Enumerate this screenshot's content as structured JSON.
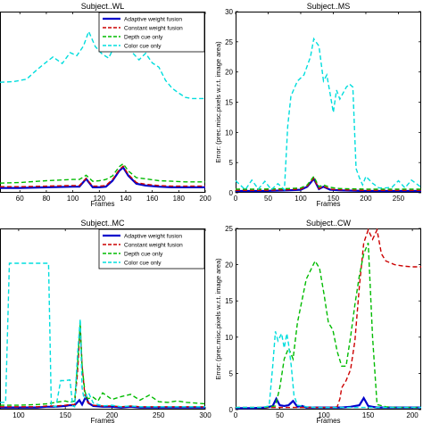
{
  "chart_data": [
    {
      "type": "line",
      "title": "Subject..WL",
      "xlabel": "Frames",
      "ylabel": "",
      "xlim": [
        45,
        200
      ],
      "ylim": [
        0,
        30
      ],
      "xticks": [
        60,
        80,
        100,
        120,
        140,
        160,
        180,
        200
      ],
      "yticks": [],
      "legend": "top-right",
      "series": [
        {
          "name": "Adaptive weight fusion",
          "color": "#0000cc",
          "dash": "solid",
          "x": [
            45,
            60,
            80,
            100,
            105,
            110,
            115,
            120,
            125,
            130,
            135,
            138,
            142,
            148,
            155,
            165,
            175,
            185,
            200
          ],
          "y": [
            0.8,
            0.8,
            0.9,
            1.0,
            1.0,
            2.3,
            0.9,
            0.9,
            1.0,
            2.0,
            3.6,
            4.2,
            2.8,
            1.5,
            1.2,
            1.0,
            0.9,
            0.9,
            0.9
          ]
        },
        {
          "name": "Constant weight fusion",
          "color": "#cc0000",
          "dash": "dash",
          "x": [
            45,
            60,
            80,
            100,
            105,
            110,
            115,
            120,
            125,
            130,
            135,
            138,
            142,
            148,
            155,
            165,
            175,
            185,
            200
          ],
          "y": [
            1.0,
            1.0,
            1.1,
            1.2,
            1.2,
            2.4,
            1.1,
            1.1,
            1.2,
            2.2,
            3.8,
            4.4,
            3.0,
            1.7,
            1.4,
            1.2,
            1.1,
            1.1,
            1.1
          ]
        },
        {
          "name": "Depth cue only",
          "color": "#00bb00",
          "dash": "dash",
          "x": [
            45,
            60,
            80,
            100,
            105,
            110,
            115,
            120,
            125,
            130,
            135,
            138,
            142,
            148,
            155,
            165,
            175,
            185,
            200
          ],
          "y": [
            1.6,
            1.7,
            2.0,
            2.2,
            2.2,
            2.9,
            1.9,
            2.0,
            2.2,
            2.8,
            4.3,
            4.8,
            3.6,
            2.5,
            2.3,
            2.0,
            1.9,
            1.8,
            1.8
          ]
        },
        {
          "name": "Color cue only",
          "color": "#00dddd",
          "dash": "dash",
          "x": [
            45,
            55,
            65,
            72,
            78,
            85,
            92,
            98,
            103,
            108,
            112,
            117,
            122,
            127,
            132,
            136,
            140,
            145,
            150,
            155,
            160,
            165,
            170,
            175,
            180,
            185,
            190,
            200
          ],
          "y": [
            18.3,
            18.4,
            18.8,
            20.2,
            21.3,
            22.5,
            21.4,
            23.2,
            22.7,
            24.3,
            26.7,
            24.2,
            23.0,
            22.3,
            24.5,
            25.8,
            24.5,
            23.2,
            22.0,
            23.1,
            21.5,
            20.8,
            18.6,
            17.3,
            16.5,
            15.8,
            15.6,
            15.6
          ]
        }
      ]
    },
    {
      "type": "line",
      "title": "Subject..MS",
      "xlabel": "Frames",
      "ylabel": "Error: (prec.misc.pixels w.r.t. image area)",
      "xlim": [
        0,
        285
      ],
      "ylim": [
        0,
        30
      ],
      "xticks": [
        0,
        50,
        100,
        150,
        200,
        250
      ],
      "yticks": [
        0,
        5,
        10,
        15,
        20,
        25,
        30
      ],
      "series": [
        {
          "name": "Adaptive weight fusion",
          "color": "#0000cc",
          "dash": "solid",
          "x": [
            0,
            40,
            80,
            100,
            110,
            120,
            128,
            135,
            145,
            160,
            200,
            240,
            285
          ],
          "y": [
            0.3,
            0.3,
            0.4,
            0.5,
            1.0,
            2.3,
            0.6,
            1.0,
            0.5,
            0.4,
            0.3,
            0.3,
            0.3
          ]
        },
        {
          "name": "Constant weight fusion",
          "color": "#cc0000",
          "dash": "dash",
          "x": [
            0,
            40,
            80,
            100,
            110,
            120,
            128,
            135,
            145,
            160,
            200,
            240,
            285
          ],
          "y": [
            0.4,
            0.4,
            0.5,
            0.6,
            1.1,
            2.4,
            0.7,
            1.1,
            0.6,
            0.5,
            0.4,
            0.4,
            0.4
          ]
        },
        {
          "name": "Depth cue only",
          "color": "#00bb00",
          "dash": "dash",
          "x": [
            0,
            40,
            80,
            100,
            110,
            120,
            128,
            135,
            145,
            160,
            200,
            240,
            285
          ],
          "y": [
            0.6,
            0.6,
            0.7,
            0.8,
            1.3,
            2.7,
            1.0,
            1.3,
            0.9,
            0.7,
            0.6,
            0.6,
            0.6
          ]
        },
        {
          "name": "Color cue only",
          "color": "#00dddd",
          "dash": "dash",
          "x": [
            0,
            15,
            25,
            35,
            45,
            55,
            65,
            75,
            80,
            85,
            95,
            105,
            115,
            120,
            128,
            135,
            140,
            145,
            150,
            155,
            160,
            170,
            175,
            180,
            185,
            190,
            195,
            200,
            210,
            220,
            230,
            240,
            250,
            260,
            270,
            285
          ],
          "y": [
            2.0,
            0.5,
            2.1,
            0.6,
            1.9,
            0.5,
            1.5,
            0.5,
            11.0,
            16.0,
            18.5,
            19.5,
            22.5,
            25.5,
            24.3,
            18.5,
            19.5,
            16.5,
            13.3,
            17.0,
            15.5,
            17.5,
            18.0,
            17.5,
            4.0,
            2.5,
            1.3,
            2.7,
            1.6,
            0.8,
            0.8,
            0.9,
            2.0,
            0.8,
            2.1,
            0.9
          ]
        }
      ]
    },
    {
      "type": "line",
      "title": "Subject..MC",
      "xlabel": "Frames",
      "ylabel": "",
      "xlim": [
        80,
        300
      ],
      "ylim": [
        0,
        25
      ],
      "xticks": [
        100,
        150,
        200,
        250,
        300
      ],
      "yticks": [],
      "legend": "top-right",
      "series": [
        {
          "name": "Adaptive weight fusion",
          "color": "#0000cc",
          "dash": "solid",
          "x": [
            80,
            100,
            120,
            130,
            140,
            150,
            155,
            160,
            165,
            168,
            172,
            175,
            180,
            190,
            200,
            210,
            220,
            230,
            240,
            260,
            280,
            300
          ],
          "y": [
            0.3,
            0.3,
            0.3,
            0.4,
            0.4,
            0.5,
            0.6,
            0.6,
            1.3,
            0.7,
            1.8,
            0.9,
            0.5,
            0.4,
            0.4,
            0.3,
            0.4,
            0.3,
            0.3,
            0.3,
            0.3,
            0.3
          ]
        },
        {
          "name": "Constant weight fusion",
          "color": "#cc0000",
          "dash": "dash",
          "x": [
            80,
            100,
            120,
            130,
            140,
            150,
            155,
            160,
            163,
            166,
            168,
            171,
            174,
            180,
            190,
            200,
            210,
            220,
            230,
            240,
            260,
            280,
            300
          ],
          "y": [
            0.4,
            0.4,
            0.4,
            0.5,
            0.5,
            0.6,
            0.7,
            0.7,
            5.0,
            11.5,
            6.0,
            2.0,
            1.0,
            0.6,
            0.5,
            0.5,
            0.4,
            0.5,
            0.4,
            0.4,
            0.4,
            0.4,
            0.4
          ]
        },
        {
          "name": "Depth cue only",
          "color": "#00bb00",
          "dash": "dash",
          "x": [
            80,
            100,
            120,
            130,
            140,
            150,
            155,
            160,
            163,
            166,
            168,
            171,
            174,
            180,
            185,
            190,
            200,
            210,
            220,
            230,
            240,
            250,
            260,
            270,
            280,
            290,
            300
          ],
          "y": [
            0.6,
            0.6,
            0.7,
            0.8,
            1.0,
            1.2,
            1.0,
            1.2,
            6.0,
            12.0,
            6.0,
            2.5,
            1.5,
            1.7,
            1.2,
            2.3,
            1.4,
            1.8,
            2.1,
            1.3,
            2.0,
            1.1,
            1.0,
            1.2,
            1.0,
            0.9,
            0.8
          ]
        },
        {
          "name": "Color cue only",
          "color": "#00dddd",
          "dash": "dash",
          "x": [
            80,
            86,
            90,
            95,
            125,
            132,
            135,
            140,
            145,
            150,
            155,
            158,
            160,
            163,
            166,
            168,
            170,
            175,
            180,
            185,
            190,
            200,
            210,
            220,
            230,
            240,
            260,
            280,
            300
          ],
          "y": [
            1.0,
            1.0,
            20.2,
            20.2,
            20.2,
            20.2,
            0.5,
            0.4,
            4.0,
            4.0,
            4.1,
            0.5,
            0.4,
            7.5,
            12.5,
            3.0,
            1.5,
            2.3,
            0.9,
            0.7,
            0.5,
            0.6,
            0.4,
            0.5,
            0.4,
            0.4,
            0.4,
            0.4,
            0.4
          ]
        }
      ]
    },
    {
      "type": "line",
      "title": "Subject..CW",
      "xlabel": "Frames",
      "ylabel": "Error: (prec.misc.pixels w.r.t. image area)",
      "xlim": [
        0,
        210
      ],
      "ylim": [
        0,
        25
      ],
      "xticks": [
        0,
        50,
        100,
        150,
        200
      ],
      "yticks": [
        0,
        5,
        10,
        15,
        20,
        25
      ],
      "series": [
        {
          "name": "Adaptive weight fusion",
          "color": "#0000cc",
          "dash": "solid",
          "x": [
            0,
            20,
            35,
            42,
            46,
            50,
            55,
            60,
            65,
            70,
            75,
            80,
            90,
            100,
            110,
            120,
            130,
            140,
            145,
            150,
            155,
            160,
            170,
            180,
            200,
            210
          ],
          "y": [
            0.2,
            0.2,
            0.3,
            0.5,
            1.5,
            0.6,
            0.5,
            0.6,
            1.2,
            0.4,
            0.5,
            0.3,
            0.3,
            0.3,
            0.3,
            0.3,
            0.4,
            0.6,
            1.6,
            0.5,
            0.4,
            0.3,
            0.3,
            0.3,
            0.3,
            0.3
          ]
        },
        {
          "name": "Constant weight fusion",
          "color": "#cc0000",
          "dash": "dash",
          "x": [
            0,
            50,
            100,
            110,
            115,
            118,
            120,
            125,
            130,
            135,
            140,
            145,
            150,
            155,
            160,
            165,
            170,
            180,
            190,
            200,
            210
          ],
          "y": [
            0.3,
            0.3,
            0.3,
            0.3,
            0.4,
            1.5,
            3.0,
            4.0,
            5.5,
            9.5,
            17.0,
            23.0,
            24.8,
            23.5,
            24.8,
            21.5,
            20.5,
            20.0,
            19.8,
            19.7,
            19.7
          ]
        },
        {
          "name": "Depth cue only",
          "color": "#00bb00",
          "dash": "dash",
          "x": [
            0,
            30,
            45,
            50,
            55,
            60,
            65,
            70,
            80,
            90,
            95,
            100,
            105,
            110,
            115,
            120,
            125,
            130,
            135,
            140,
            145,
            150,
            155,
            160,
            170,
            180,
            200,
            210
          ],
          "y": [
            0.3,
            0.3,
            0.5,
            3.0,
            7.0,
            8.5,
            7.0,
            12.0,
            18.0,
            20.5,
            19.5,
            16.0,
            12.0,
            11.0,
            8.0,
            6.0,
            6.0,
            10.0,
            14.5,
            18.5,
            21.5,
            23.0,
            10.0,
            0.7,
            0.4,
            0.3,
            0.3,
            0.3
          ]
        },
        {
          "name": "Color cue only",
          "color": "#00dddd",
          "dash": "dash",
          "x": [
            0,
            30,
            38,
            42,
            45,
            48,
            52,
            55,
            58,
            60,
            63,
            66,
            70,
            75,
            80,
            90,
            100,
            110,
            120,
            130,
            140,
            150,
            160,
            180,
            200,
            210
          ],
          "y": [
            0.3,
            0.3,
            0.5,
            6.0,
            10.8,
            9.5,
            10.5,
            8.5,
            10.5,
            9.0,
            6.0,
            2.0,
            0.6,
            0.5,
            0.4,
            0.3,
            0.3,
            0.3,
            0.3,
            0.3,
            0.3,
            0.3,
            0.3,
            0.3,
            0.3,
            0.3
          ]
        }
      ]
    }
  ]
}
